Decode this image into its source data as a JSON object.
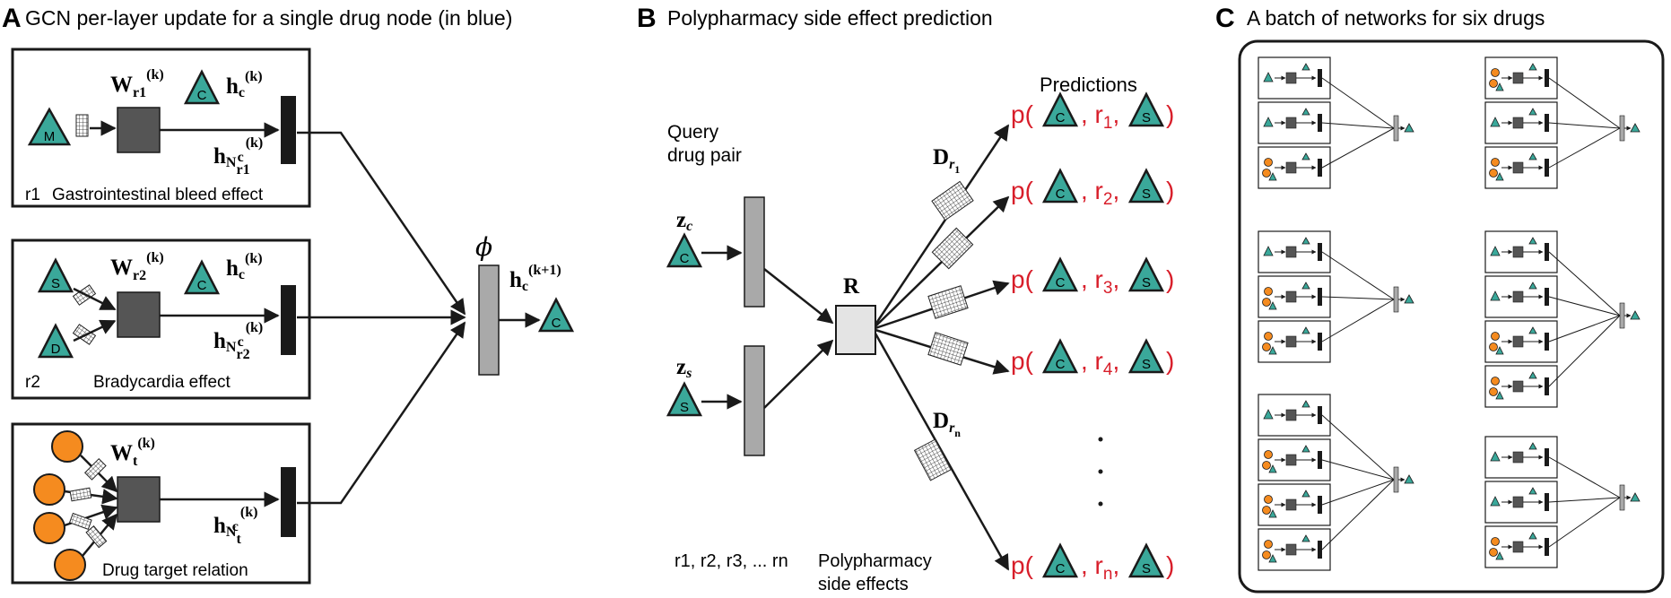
{
  "colors": {
    "teal": "#3aa89a",
    "orange": "#f58b1f",
    "red": "#d81e2a",
    "dark": "#555555",
    "black": "#1a1a1a",
    "gray": "#a9a9a9",
    "lightgray": "#e4e4e4"
  },
  "panel_a": {
    "letter": "A",
    "title": "GCN per-layer update for a single drug node (in blue)",
    "box1": {
      "relation": "r1",
      "caption": "Gastrointestinal bleed effect",
      "source_node": "M",
      "target_node": "C",
      "weight_main": "W",
      "weight_sub": "r1",
      "weight_sup": "(k)",
      "h_c": "h",
      "h_c_sub": "c",
      "h_c_sup": "(k)",
      "h_n": "h",
      "h_n_sub": "N",
      "h_n_subsub": "r1",
      "h_n_subsup": "c",
      "h_n_sup": "(k)"
    },
    "box2": {
      "relation": "r2",
      "caption": "Bradycardia effect",
      "source_nodes": [
        "S",
        "D"
      ],
      "target_node": "C",
      "weight_main": "W",
      "weight_sub": "r2",
      "weight_sup": "(k)",
      "h_c": "h",
      "h_c_sub": "c",
      "h_c_sup": "(k)",
      "h_n": "h",
      "h_n_sub": "N",
      "h_n_subsub": "r2",
      "h_n_subsup": "c",
      "h_n_sup": "(k)"
    },
    "box3": {
      "caption": "Drug target relation",
      "weight_main": "W",
      "weight_sub": "t",
      "weight_sup": "(k)",
      "h_n": "h",
      "h_n_sub": "N",
      "h_n_subsub": "t",
      "h_n_subsup": "c",
      "h_n_sup": "(k)"
    },
    "phi": "ϕ",
    "output": {
      "h": "h",
      "sub": "c",
      "sup": "(k+1)",
      "node": "C"
    }
  },
  "panel_b": {
    "letter": "B",
    "title": "Polypharmacy side effect prediction",
    "query_line1": "Query",
    "query_line2": "drug pair",
    "z_c": {
      "main": "z",
      "sub": "c",
      "node": "C"
    },
    "z_s": {
      "main": "z",
      "sub": "s",
      "node": "S"
    },
    "r_label": "R",
    "d_r1": {
      "main": "D",
      "sub": "r",
      "subsub": "1"
    },
    "d_rn": {
      "main": "D",
      "sub": "r",
      "subsub": "n"
    },
    "predictions_label": "Predictions",
    "predictions": [
      {
        "p": "p(",
        "node1": "C",
        "rel": "r",
        "rel_sub": "1",
        "node2": "S",
        "close": ")"
      },
      {
        "p": "p(",
        "node1": "C",
        "rel": "r",
        "rel_sub": "2",
        "node2": "S",
        "close": ")"
      },
      {
        "p": "p(",
        "node1": "C",
        "rel": "r",
        "rel_sub": "3",
        "node2": "S",
        "close": ")"
      },
      {
        "p": "p(",
        "node1": "C",
        "rel": "r",
        "rel_sub": "4",
        "node2": "S",
        "close": ")"
      },
      {
        "p": "p(",
        "node1": "C",
        "rel": "r",
        "rel_sub": "n",
        "node2": "S",
        "close": ")"
      }
    ],
    "side_effects_list": "r1, r2, r3, ... rn",
    "side_effects_line1": "Polypharmacy",
    "side_effects_line2": "side effects"
  },
  "panel_c": {
    "letter": "C",
    "title": "A batch of networks for six drugs"
  }
}
